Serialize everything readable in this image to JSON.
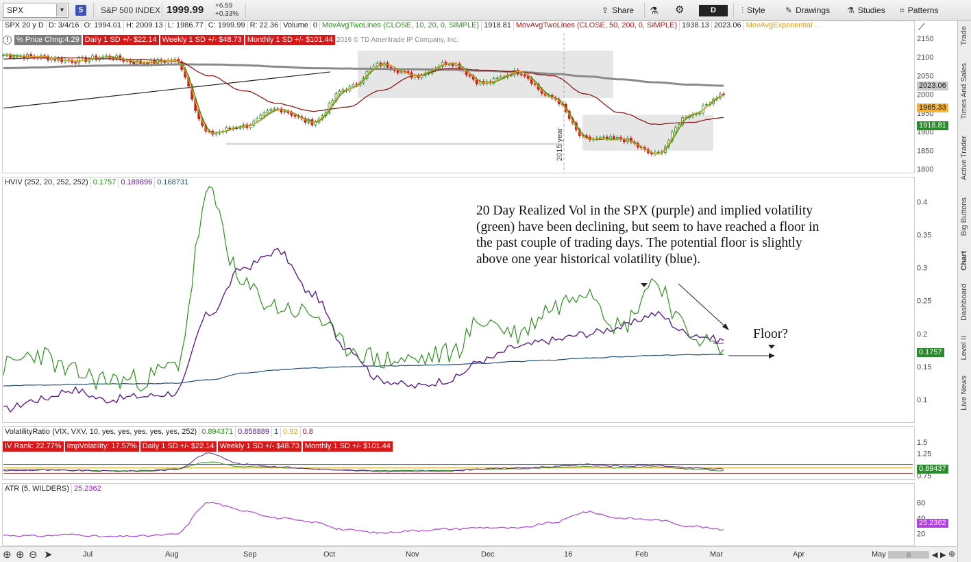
{
  "toolbar": {
    "symbol": "SPX",
    "link_badge": "5",
    "symbol_name": "S&P 500 INDEX",
    "last": "1999.99",
    "change": "+6.59",
    "change_pct": "+0.33%",
    "share_label": "Share",
    "period_label": "D",
    "style_label": "Style",
    "drawings_label": "Drawings",
    "studies_label": "Studies",
    "patterns_label": "Patterns",
    "icons": {
      "dropdown": "chevron-down-icon",
      "share": "share-icon",
      "lab": "flask-icon",
      "settings": "gear-icon",
      "style": "style-icon",
      "drawings": "pencil-icon",
      "studies": "flask-icon",
      "patterns": "patterns-icon"
    }
  },
  "side_tabs": [
    "Trade",
    "Times And Sales",
    "Active Trader",
    "Big Buttons",
    "Chart",
    "Dashboard",
    "Level II",
    "Live News"
  ],
  "price_panel": {
    "header": {
      "sym": "SPX 20 y D",
      "date": "D: 3/4/16",
      "open": "O: 1994.01",
      "high": "H: 2009.13",
      "low": "L: 1986.77",
      "close": "C: 1999.99",
      "range": "R: 22.36",
      "volume_label": "Volume",
      "volume": "0",
      "ma1": "MovAvgTwoLines (CLOSE, 10, 20, 0, SIMPLE)",
      "ma1_val": "1918.81",
      "ma2": "MovAvgTwoLines (CLOSE, 50, 200, 0, SIMPLE)",
      "ma2_val1": "1938.13",
      "ma2_val2": "2023.06",
      "ma3": "MovAvgExponential ..."
    },
    "sub": {
      "pct": "% Price Chng:4.29",
      "daily": "Daily 1 SD +/- $22.14",
      "weekly": "Weekly 1 SD +/- $48.73",
      "monthly": "Monthly 1 SD +/- $101.44",
      "copyright": "2016 © TD Ameritrade IP Company, Inc."
    },
    "year_marker": "2015 year",
    "axis_ticks": [
      "2150",
      "2100",
      "2050",
      "2000",
      "1950",
      "1900",
      "1850",
      "1800"
    ],
    "badges": [
      "2023.06",
      "1965.33",
      "1918.81"
    ]
  },
  "hviv_panel": {
    "header": {
      "name": "HVIV (252, 20, 252, 252)",
      "v1": "0.1757",
      "v2": "0.189896",
      "v3": "0.168731"
    },
    "annotation": "20 Day Realized Vol in the SPX (purple)  and implied volatility (green) have been declining, but seem to have reached a floor in the past couple of trading days. The potential floor is slightly above one year historical volatility (blue).",
    "floor_label": "Floor?",
    "badge": "0.1757"
  },
  "vr_panel": {
    "header": {
      "name": "VolatilityRatio (VIX, VXV, 10, yes, yes, yes, yes, yes, 252)",
      "v1": "0.894371",
      "v2": "0.858889",
      "v3": "1",
      "v4": "0.92",
      "v5": "0.8"
    },
    "sub": {
      "ivrank": "IV Rank: 22.77%",
      "impvol": "ImpVolatility: 17.57%",
      "daily": "Daily 1 SD +/- $22.14",
      "weekly": "Weekly 1 SD +/- $48.73",
      "monthly": "Monthly 1 SD +/- $101.44"
    },
    "badge": "0.89437"
  },
  "atr_panel": {
    "header": {
      "name": "ATR (5, WILDERS)",
      "v1": "25.2362"
    },
    "badge": "25.2362"
  },
  "bottom": {
    "months": [
      "Jul",
      "Aug",
      "Sep",
      "Oct",
      "Nov",
      "Dec",
      "16",
      "Feb",
      "Mar",
      "Apr",
      "May"
    ]
  },
  "colors": {
    "green": "#2f8f1f",
    "purple": "#5b1e8c",
    "blue": "#1f4f7a",
    "red_ma": "#8b1a1a",
    "grey_ma": "#8a8a8a",
    "orange_ma": "#e0a020",
    "up": "#2c8a2c",
    "down": "#d21a1a"
  },
  "chart_data": [
    {
      "type": "candlestick",
      "title": "SPX 20 y D",
      "x": [
        "2015-06-08",
        "2015-06-22",
        "2015-07-06",
        "2015-07-20",
        "2015-08-03",
        "2015-08-17",
        "2015-08-24",
        "2015-08-31",
        "2015-09-14",
        "2015-09-28",
        "2015-10-12",
        "2015-10-26",
        "2015-11-09",
        "2015-11-23",
        "2015-12-07",
        "2015-12-21",
        "2016-01-04",
        "2016-01-19",
        "2016-02-01",
        "2016-02-11",
        "2016-02-22",
        "2016-03-04"
      ],
      "close": [
        2105,
        2100,
        2090,
        2100,
        2085,
        2090,
        1895,
        1915,
        1960,
        1925,
        2015,
        2080,
        2050,
        2085,
        2030,
        2060,
        1990,
        1880,
        1880,
        1840,
        1945,
        2000
      ],
      "ylim": [
        1790,
        2170
      ],
      "series": [
        {
          "name": "MovAvg 50",
          "values": [
            2095,
            2097,
            2098,
            2095,
            2093,
            2090,
            2050,
            2010,
            1975,
            1955,
            1965,
            2010,
            2050,
            2070,
            2065,
            2060,
            2050,
            2000,
            1950,
            1920,
            1925,
            1938
          ]
        },
        {
          "name": "MovAvg 200",
          "values": [
            2070,
            2072,
            2075,
            2077,
            2078,
            2080,
            2080,
            2078,
            2074,
            2070,
            2069,
            2068,
            2067,
            2066,
            2063,
            2060,
            2055,
            2048,
            2040,
            2032,
            2026,
            2023
          ]
        }
      ]
    },
    {
      "type": "line",
      "title": "HVIV (252, 20, 252, 252)",
      "x": [
        "2015-06-08",
        "2015-06-22",
        "2015-07-06",
        "2015-07-20",
        "2015-08-03",
        "2015-08-17",
        "2015-08-24",
        "2015-08-31",
        "2015-09-14",
        "2015-09-28",
        "2015-10-12",
        "2015-10-26",
        "2015-11-09",
        "2015-11-23",
        "2015-12-07",
        "2015-12-21",
        "2016-01-04",
        "2016-01-19",
        "2016-02-01",
        "2016-02-11",
        "2016-02-22",
        "2016-03-04"
      ],
      "ylim": [
        0.07,
        0.42
      ],
      "series": [
        {
          "name": "purple",
          "values": [
            0.085,
            0.1,
            0.115,
            0.1,
            0.105,
            0.11,
            0.23,
            0.3,
            0.325,
            0.26,
            0.18,
            0.13,
            0.12,
            0.13,
            0.16,
            0.18,
            0.19,
            0.2,
            0.21,
            0.23,
            0.2,
            0.19
          ]
        },
        {
          "name": "green",
          "values": [
            0.15,
            0.17,
            0.14,
            0.13,
            0.13,
            0.15,
            0.41,
            0.27,
            0.24,
            0.23,
            0.18,
            0.16,
            0.16,
            0.17,
            0.22,
            0.2,
            0.24,
            0.27,
            0.21,
            0.28,
            0.2,
            0.1757
          ]
        },
        {
          "name": "blue",
          "values": [
            0.121,
            0.122,
            0.123,
            0.124,
            0.124,
            0.125,
            0.13,
            0.14,
            0.145,
            0.148,
            0.15,
            0.151,
            0.152,
            0.153,
            0.155,
            0.158,
            0.16,
            0.163,
            0.165,
            0.167,
            0.168,
            0.168731
          ]
        }
      ]
    },
    {
      "type": "line",
      "title": "VolatilityRatio (VIX, VXV, 10, yes, yes, yes, yes, yes, 252)",
      "ylim": [
        0.7,
        1.55
      ],
      "series": [
        {
          "name": "purple",
          "values": [
            0.86,
            0.87,
            0.86,
            0.85,
            0.85,
            0.88,
            1.25,
            1.0,
            0.95,
            0.9,
            0.86,
            0.84,
            0.84,
            0.85,
            0.9,
            0.92,
            0.95,
            1.0,
            0.96,
            0.98,
            0.92,
            0.894
          ]
        },
        {
          "name": "green",
          "values": [
            0.88,
            0.88,
            0.87,
            0.86,
            0.86,
            0.9,
            1.05,
            0.95,
            0.93,
            0.9,
            0.87,
            0.86,
            0.86,
            0.87,
            0.9,
            0.9,
            0.93,
            0.95,
            0.92,
            0.95,
            0.9,
            0.859
          ]
        }
      ]
    },
    {
      "type": "line",
      "title": "ATR (5, WILDERS)",
      "ylim": [
        10,
        70
      ],
      "series": [
        {
          "name": "ATR",
          "values": [
            18,
            17,
            19,
            16,
            17,
            19,
            60,
            50,
            40,
            35,
            25,
            21,
            24,
            26,
            28,
            27,
            34,
            48,
            40,
            38,
            30,
            25.2362
          ]
        }
      ]
    }
  ]
}
